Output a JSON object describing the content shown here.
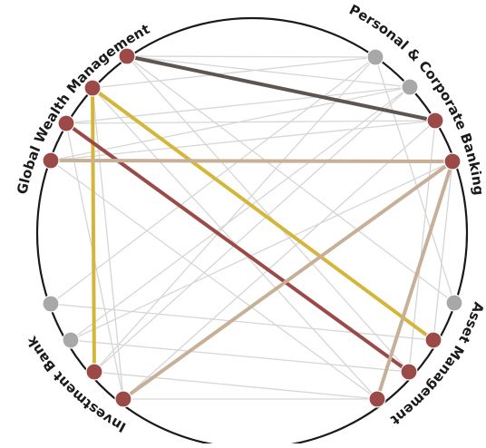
{
  "segments": {
    "global_wealth_management": "Global Wealth Management",
    "personal_corporate_banking": "Personal & Corporate Banking",
    "asset_management": "Asset Management",
    "investment_bank": "Investment Bank"
  },
  "colors": {
    "ring": "#1a1a1a",
    "node_active": "#9b4a47",
    "node_inactive": "#a8a8a8",
    "link_faint": "#d6d6d6",
    "link_dark": "#5e5550",
    "link_gold": "#d4b63a",
    "link_red": "#9b4a47",
    "link_tan": "#c7b097"
  }
}
